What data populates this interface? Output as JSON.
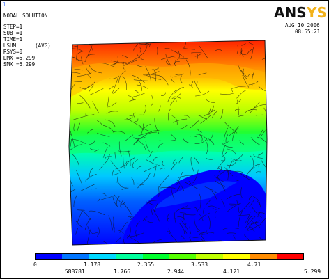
{
  "window_number": "1",
  "logo_text": "ANSYS",
  "header": {
    "title": "NODAL SOLUTION",
    "lines": [
      "STEP=1",
      "SUB =1",
      "TIME=1",
      "USUM      (AVG)",
      "RSYS=0",
      "DMX =5.299",
      "SMX =5.299"
    ]
  },
  "datetime": {
    "date": "AUG 10 2006",
    "time": "08:55:21"
  },
  "legend": {
    "colors": [
      "#0000ff",
      "#0075ff",
      "#00d8ff",
      "#00ff9c",
      "#00ff2e",
      "#55ff00",
      "#c0ff00",
      "#ffff00",
      "#ff8c00",
      "#ff0000"
    ],
    "top_labels": [
      "0",
      "1.178",
      "2.355",
      "3.533",
      "4.71"
    ],
    "bottom_labels": [
      ".588781",
      "1.766",
      "2.944",
      "4.121",
      "5.299"
    ]
  }
}
